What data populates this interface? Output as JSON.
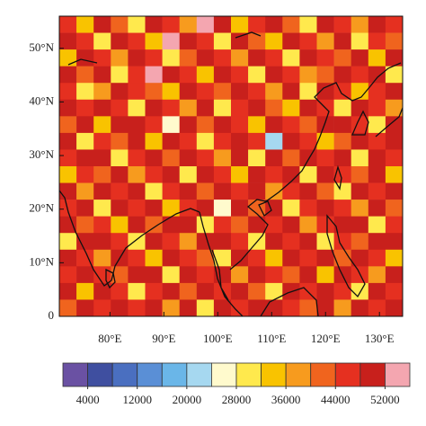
{
  "chart_data": {
    "type": "gridmap",
    "xlim": [
      70.6,
      134.3
    ],
    "ylim": [
      0,
      56
    ],
    "xticks": [
      {
        "value": 80,
        "label": "80°E"
      },
      {
        "value": 90,
        "label": "90°E"
      },
      {
        "value": 100,
        "label": "100°E"
      },
      {
        "value": 110,
        "label": "110°E"
      },
      {
        "value": 120,
        "label": "120°E"
      },
      {
        "value": 130,
        "label": "130°E"
      }
    ],
    "yticks": [
      0,
      {
        "value": 10,
        "label": "10°N"
      },
      {
        "value": 20,
        "label": "20°N"
      },
      {
        "value": 30,
        "label": "30°N"
      },
      {
        "value": 40,
        "label": "40°N"
      },
      {
        "value": 50,
        "label": "50°N"
      }
    ],
    "colorbar": {
      "levels": [
        4000,
        8000,
        12000,
        16000,
        20000,
        24000,
        28000,
        32000,
        36000,
        40000,
        44000,
        48000,
        52000
      ],
      "colors": [
        "#6a51a3",
        "#3f4fa0",
        "#4a6fc0",
        "#5a8fd6",
        "#6ab6e8",
        "#a6d8f0",
        "#fffacd",
        "#ffe94d",
        "#f9c300",
        "#f79b1e",
        "#f0641e",
        "#e53020",
        "#c8201c",
        "#f4a6b0"
      ],
      "ticks": [
        4000,
        12000,
        20000,
        28000,
        36000,
        44000,
        52000
      ]
    },
    "grid": [
      [
        46000,
        34000,
        50000,
        42000,
        30000,
        50000,
        46000,
        38000,
        54000,
        50000,
        34000,
        46000,
        50000,
        42000,
        30000,
        50000,
        46000,
        38000,
        50000,
        46000
      ],
      [
        50000,
        46000,
        30000,
        50000,
        46000,
        34000,
        54000,
        50000,
        46000,
        30000,
        50000,
        42000,
        34000,
        50000,
        46000,
        38000,
        50000,
        30000,
        46000,
        42000
      ],
      [
        34000,
        50000,
        46000,
        38000,
        50000,
        46000,
        30000,
        42000,
        50000,
        46000,
        38000,
        50000,
        46000,
        30000,
        50000,
        46000,
        42000,
        50000,
        34000,
        50000
      ],
      [
        50000,
        42000,
        50000,
        30000,
        46000,
        54000,
        50000,
        46000,
        34000,
        50000,
        46000,
        30000,
        50000,
        46000,
        38000,
        42000,
        50000,
        46000,
        50000,
        30000
      ],
      [
        46000,
        30000,
        38000,
        50000,
        46000,
        42000,
        34000,
        50000,
        46000,
        42000,
        50000,
        46000,
        38000,
        50000,
        30000,
        50000,
        46000,
        34000,
        46000,
        50000
      ],
      [
        50000,
        46000,
        50000,
        46000,
        30000,
        50000,
        46000,
        38000,
        50000,
        30000,
        46000,
        50000,
        42000,
        34000,
        50000,
        46000,
        30000,
        50000,
        46000,
        38000
      ],
      [
        42000,
        50000,
        34000,
        50000,
        50000,
        46000,
        26000,
        50000,
        42000,
        50000,
        46000,
        34000,
        50000,
        46000,
        42000,
        50000,
        50000,
        46000,
        30000,
        50000
      ],
      [
        50000,
        30000,
        46000,
        42000,
        50000,
        34000,
        50000,
        46000,
        30000,
        46000,
        50000,
        46000,
        22000,
        50000,
        46000,
        34000,
        42000,
        50000,
        46000,
        50000
      ],
      [
        46000,
        50000,
        50000,
        30000,
        46000,
        50000,
        42000,
        50000,
        46000,
        38000,
        50000,
        30000,
        50000,
        42000,
        50000,
        46000,
        50000,
        30000,
        50000,
        46000
      ],
      [
        34000,
        46000,
        42000,
        50000,
        38000,
        46000,
        50000,
        30000,
        50000,
        46000,
        34000,
        50000,
        46000,
        50000,
        30000,
        50000,
        46000,
        42000,
        50000,
        34000
      ],
      [
        50000,
        38000,
        50000,
        46000,
        50000,
        30000,
        46000,
        50000,
        42000,
        50000,
        46000,
        50000,
        38000,
        46000,
        50000,
        42000,
        30000,
        50000,
        46000,
        50000
      ],
      [
        46000,
        50000,
        30000,
        50000,
        46000,
        50000,
        34000,
        46000,
        50000,
        26000,
        50000,
        42000,
        50000,
        30000,
        46000,
        50000,
        46000,
        38000,
        50000,
        42000
      ],
      [
        50000,
        42000,
        46000,
        34000,
        50000,
        42000,
        50000,
        50000,
        30000,
        46000,
        42000,
        50000,
        46000,
        50000,
        38000,
        46000,
        50000,
        50000,
        30000,
        46000
      ],
      [
        30000,
        50000,
        50000,
        46000,
        30000,
        50000,
        46000,
        38000,
        50000,
        50000,
        46000,
        30000,
        50000,
        46000,
        50000,
        30000,
        46000,
        42000,
        50000,
        50000
      ],
      [
        50000,
        46000,
        38000,
        50000,
        46000,
        34000,
        50000,
        46000,
        42000,
        30000,
        50000,
        46000,
        34000,
        50000,
        46000,
        50000,
        42000,
        50000,
        46000,
        34000
      ],
      [
        46000,
        50000,
        46000,
        42000,
        50000,
        50000,
        30000,
        50000,
        46000,
        50000,
        38000,
        50000,
        46000,
        42000,
        50000,
        34000,
        50000,
        46000,
        38000,
        50000
      ],
      [
        50000,
        34000,
        50000,
        46000,
        30000,
        46000,
        50000,
        42000,
        50000,
        46000,
        50000,
        42000,
        30000,
        50000,
        46000,
        50000,
        46000,
        30000,
        50000,
        46000
      ],
      [
        42000,
        50000,
        46000,
        50000,
        46000,
        50000,
        38000,
        50000,
        30000,
        50000,
        46000,
        50000,
        50000,
        46000,
        42000,
        50000,
        38000,
        50000,
        46000,
        50000
      ]
    ]
  }
}
